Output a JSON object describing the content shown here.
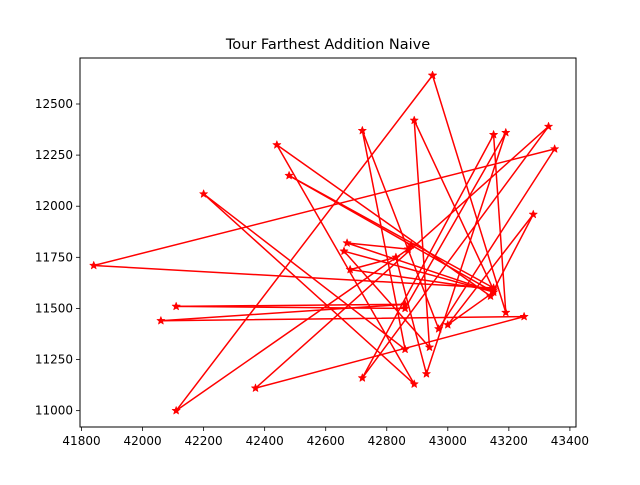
{
  "chart_data": {
    "type": "line",
    "title": "Tour Farthest Addition Naive",
    "xlabel": "",
    "ylabel": "",
    "xlim": [
      41795,
      43420
    ],
    "ylim": [
      10920,
      12725
    ],
    "xticks": [
      41800,
      42000,
      42200,
      42400,
      42600,
      42800,
      43000,
      43200,
      43400
    ],
    "yticks": [
      11000,
      11250,
      11500,
      11750,
      12000,
      12250,
      12500
    ],
    "grid": false,
    "legend": "none",
    "series": [
      {
        "color": "#ff0000",
        "marker": "star",
        "points": [
          [
            42950,
            12640
          ],
          [
            42110,
            11000
          ],
          [
            42870,
            11790
          ],
          [
            42670,
            11820
          ],
          [
            43150,
            11580
          ],
          [
            43000,
            11420
          ],
          [
            43280,
            11960
          ],
          [
            43140,
            11560
          ],
          [
            42440,
            12300
          ],
          [
            42890,
            11130
          ],
          [
            42200,
            12060
          ],
          [
            42860,
            11300
          ],
          [
            42720,
            12370
          ],
          [
            42970,
            11400
          ],
          [
            43350,
            12280
          ],
          [
            41840,
            11710
          ],
          [
            43150,
            11600
          ],
          [
            42480,
            12150
          ],
          [
            42880,
            11810
          ],
          [
            43150,
            11580
          ],
          [
            42660,
            11780
          ],
          [
            42940,
            11310
          ],
          [
            42890,
            12420
          ],
          [
            43150,
            11590
          ],
          [
            42680,
            11690
          ],
          [
            42830,
            11750
          ],
          [
            42930,
            11180
          ],
          [
            43190,
            12360
          ],
          [
            42860,
            11500
          ],
          [
            42110,
            11510
          ],
          [
            42860,
            11520
          ],
          [
            42060,
            11440
          ],
          [
            43250,
            11460
          ],
          [
            42370,
            11110
          ],
          [
            43330,
            12390
          ],
          [
            42720,
            11160
          ],
          [
            43150,
            12350
          ],
          [
            43190,
            11480
          ],
          [
            42950,
            12640
          ]
        ]
      }
    ]
  }
}
